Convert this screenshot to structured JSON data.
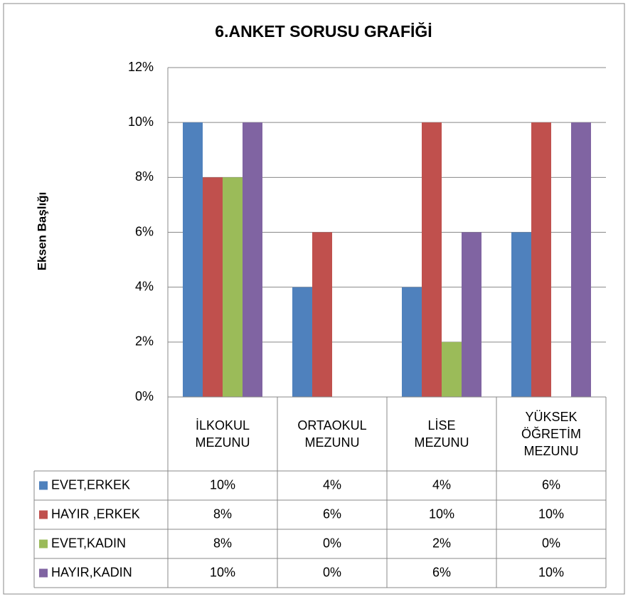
{
  "chart_data": {
    "type": "bar",
    "title": "6.ANKET SORUSU GRAFİĞİ",
    "y_label": "Eksen Başlığı",
    "categories": [
      "İLKOKUL MEZUNU",
      "ORTAOKUL MEZUNU",
      "LİSE MEZUNU",
      "YÜKSEK ÖĞRETİM MEZUNU"
    ],
    "series": [
      {
        "name": "EVET,ERKEK",
        "color": "#4f81bd",
        "values": [
          10,
          4,
          4,
          6
        ],
        "value_labels": [
          "10%",
          "4%",
          "4%",
          "6%"
        ]
      },
      {
        "name": "HAYIR ,ERKEK",
        "color": "#c0504d",
        "values": [
          8,
          6,
          10,
          10
        ],
        "value_labels": [
          "8%",
          "6%",
          "10%",
          "10%"
        ]
      },
      {
        "name": "EVET,KADIN",
        "color": "#9bbb59",
        "values": [
          8,
          0,
          2,
          0
        ],
        "value_labels": [
          "8%",
          "0%",
          "2%",
          "0%"
        ]
      },
      {
        "name": "HAYIR,KADIN",
        "color": "#8064a2",
        "values": [
          10,
          0,
          6,
          10
        ],
        "value_labels": [
          "10%",
          "0%",
          "6%",
          "10%"
        ]
      }
    ],
    "ylim": [
      0,
      12
    ],
    "yticks": [
      {
        "value": 0,
        "label": "0%"
      },
      {
        "value": 2,
        "label": "2%"
      },
      {
        "value": 4,
        "label": "4%"
      },
      {
        "value": 6,
        "label": "6%"
      },
      {
        "value": 8,
        "label": "8%"
      },
      {
        "value": 10,
        "label": "10%"
      },
      {
        "value": 12,
        "label": "12%"
      }
    ],
    "grid": true,
    "legend": "data-table"
  }
}
